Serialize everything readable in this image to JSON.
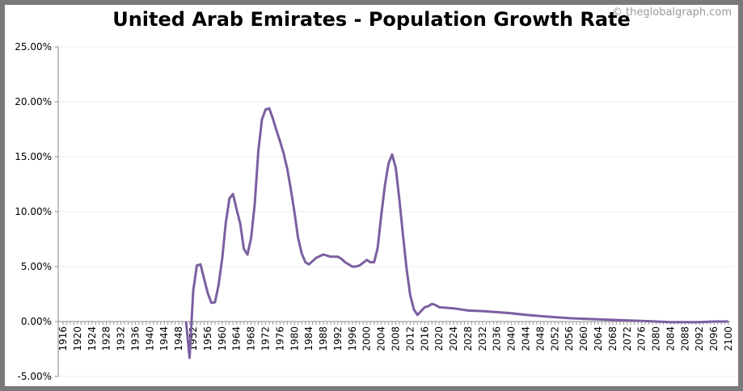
{
  "chart_data": {
    "type": "line",
    "title": "United Arab Emirates - Population Growth Rate",
    "credit": "© theglobalgraph.com",
    "xlabel": "",
    "ylabel": "",
    "xlim": [
      1916,
      2100
    ],
    "ylim": [
      -5,
      25
    ],
    "y_ticks": [
      "-5.00%",
      "0.00%",
      "5.00%",
      "10.00%",
      "15.00%",
      "20.00%",
      "25.00%"
    ],
    "x_tick_step": 4,
    "grid": true,
    "color": "#7b5fa0",
    "x": [
      1950,
      1951,
      1952,
      1953,
      1954,
      1955,
      1956,
      1957,
      1958,
      1959,
      1960,
      1961,
      1962,
      1963,
      1964,
      1965,
      1966,
      1967,
      1968,
      1969,
      1970,
      1971,
      1972,
      1973,
      1974,
      1975,
      1976,
      1977,
      1978,
      1979,
      1980,
      1981,
      1982,
      1983,
      1984,
      1985,
      1986,
      1988,
      1990,
      1992,
      1993,
      1994,
      1996,
      1997,
      1998,
      2000,
      2001,
      2002,
      2003,
      2004,
      2005,
      2006,
      2007,
      2008,
      2009,
      2010,
      2011,
      2012,
      2013,
      2014,
      2015,
      2016,
      2017,
      2018,
      2019,
      2020,
      2024,
      2028,
      2032,
      2036,
      2040,
      2044,
      2048,
      2052,
      2056,
      2060,
      2064,
      2068,
      2072,
      2076,
      2080,
      2084,
      2088,
      2092,
      2096,
      2100
    ],
    "y": [
      0.0,
      -3.3,
      2.8,
      5.1,
      5.2,
      3.9,
      2.6,
      1.7,
      1.75,
      3.3,
      5.7,
      9.0,
      11.2,
      11.6,
      10.2,
      8.9,
      6.6,
      6.1,
      7.6,
      10.7,
      15.5,
      18.4,
      19.3,
      19.4,
      18.5,
      17.4,
      16.4,
      15.3,
      13.9,
      12.0,
      9.9,
      7.6,
      6.2,
      5.4,
      5.2,
      5.5,
      5.8,
      6.1,
      5.9,
      5.9,
      5.7,
      5.4,
      5.0,
      5.0,
      5.1,
      5.6,
      5.4,
      5.4,
      6.7,
      9.7,
      12.4,
      14.4,
      15.2,
      14.0,
      11.1,
      7.9,
      4.8,
      2.4,
      1.1,
      0.6,
      0.95,
      1.3,
      1.4,
      1.6,
      1.5,
      1.3,
      1.2,
      1.0,
      0.95,
      0.85,
      0.75,
      0.6,
      0.5,
      0.4,
      0.3,
      0.25,
      0.2,
      0.15,
      0.1,
      0.05,
      0.0,
      -0.05,
      -0.05,
      -0.05,
      0.0,
      0.0
    ]
  }
}
